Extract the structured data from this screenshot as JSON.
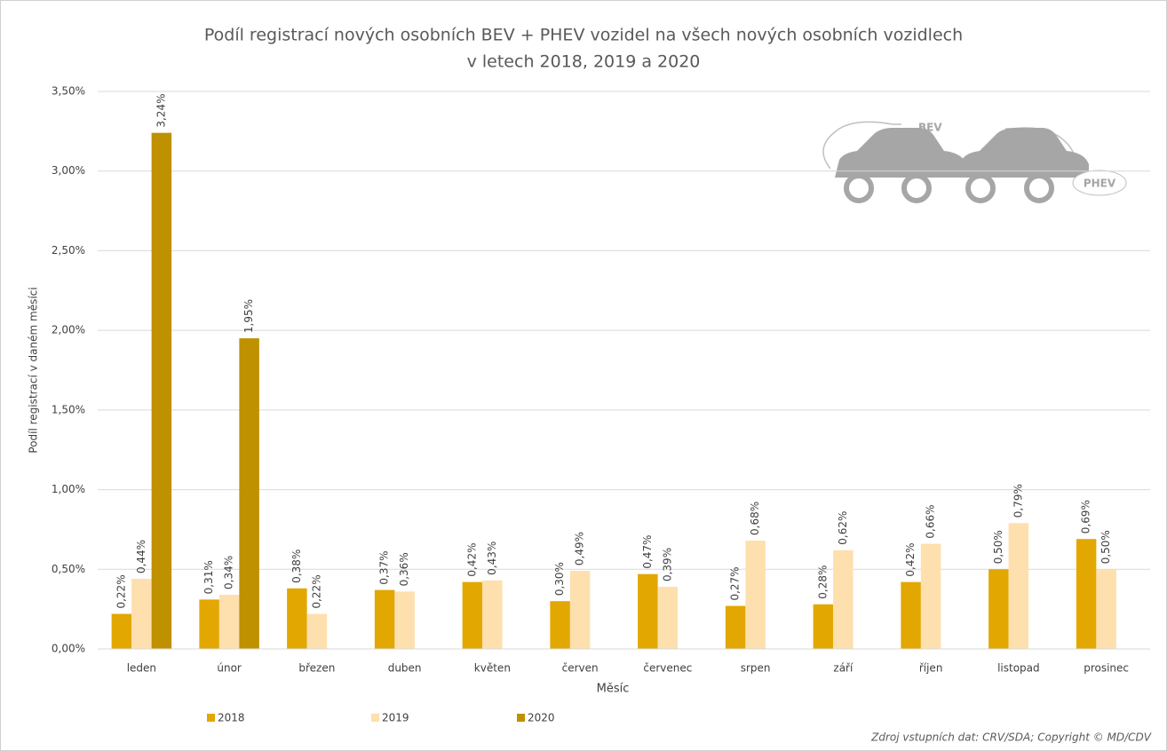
{
  "chart_data": {
    "type": "bar",
    "title": [
      "Podíl registrací nových osobních BEV + PHEV vozidel na všech nových osobních vozidlech",
      "v letech 2018, 2019 a 2020"
    ],
    "x_label": "Měsíc",
    "y_label": "Podíl registrací v daném měsíci",
    "source": "Zdroj vstupních dat: CRV/SDA; Copyright © MD/CDV",
    "annotations": [
      "BEV",
      "PHEV"
    ],
    "categories": [
      "leden",
      "únor",
      "březen",
      "duben",
      "květen",
      "červen",
      "červenec",
      "srpen",
      "září",
      "říjen",
      "listopad",
      "prosinec"
    ],
    "series": [
      {
        "name": "2018",
        "color": "#e2a700",
        "values": [
          0.22,
          0.31,
          0.38,
          0.37,
          0.42,
          0.3,
          0.47,
          0.27,
          0.28,
          0.42,
          0.5,
          0.69
        ],
        "value_labels": [
          "0,22%",
          "0,31%",
          "0,38%",
          "0,37%",
          "0,42%",
          "0,30%",
          "0,47%",
          "0,27%",
          "0,28%",
          "0,42%",
          "0,50%",
          "0,69%"
        ]
      },
      {
        "name": "2019",
        "color": "#fde0ae",
        "values": [
          0.44,
          0.34,
          0.22,
          0.36,
          0.43,
          0.49,
          0.39,
          0.68,
          0.62,
          0.66,
          0.79,
          0.5
        ],
        "value_labels": [
          "0,44%",
          "0,34%",
          "0,22%",
          "0,36%",
          "0,43%",
          "0,49%",
          "0,39%",
          "0,68%",
          "0,62%",
          "0,66%",
          "0,79%",
          "0,50%"
        ]
      },
      {
        "name": "2020",
        "color": "#bf9000",
        "values": [
          3.24,
          1.95,
          null,
          null,
          null,
          null,
          null,
          null,
          null,
          null,
          null,
          null
        ],
        "value_labels": [
          "3,24%",
          "1,95%",
          null,
          null,
          null,
          null,
          null,
          null,
          null,
          null,
          null,
          null
        ]
      }
    ],
    "ylim": [
      0,
      3.5
    ],
    "yticks": [
      {
        "value": 0,
        "label": "0,00%"
      },
      {
        "value": 0.5,
        "label": "0,50%"
      },
      {
        "value": 1,
        "label": "1,00%"
      },
      {
        "value": 1.5,
        "label": "1,50%"
      },
      {
        "value": 2,
        "label": "2,00%"
      },
      {
        "value": 2.5,
        "label": "2,50%"
      },
      {
        "value": 3,
        "label": "3,00%"
      },
      {
        "value": 3.5,
        "label": "3,50%"
      }
    ],
    "grid": true,
    "legend": "bottom-left"
  }
}
